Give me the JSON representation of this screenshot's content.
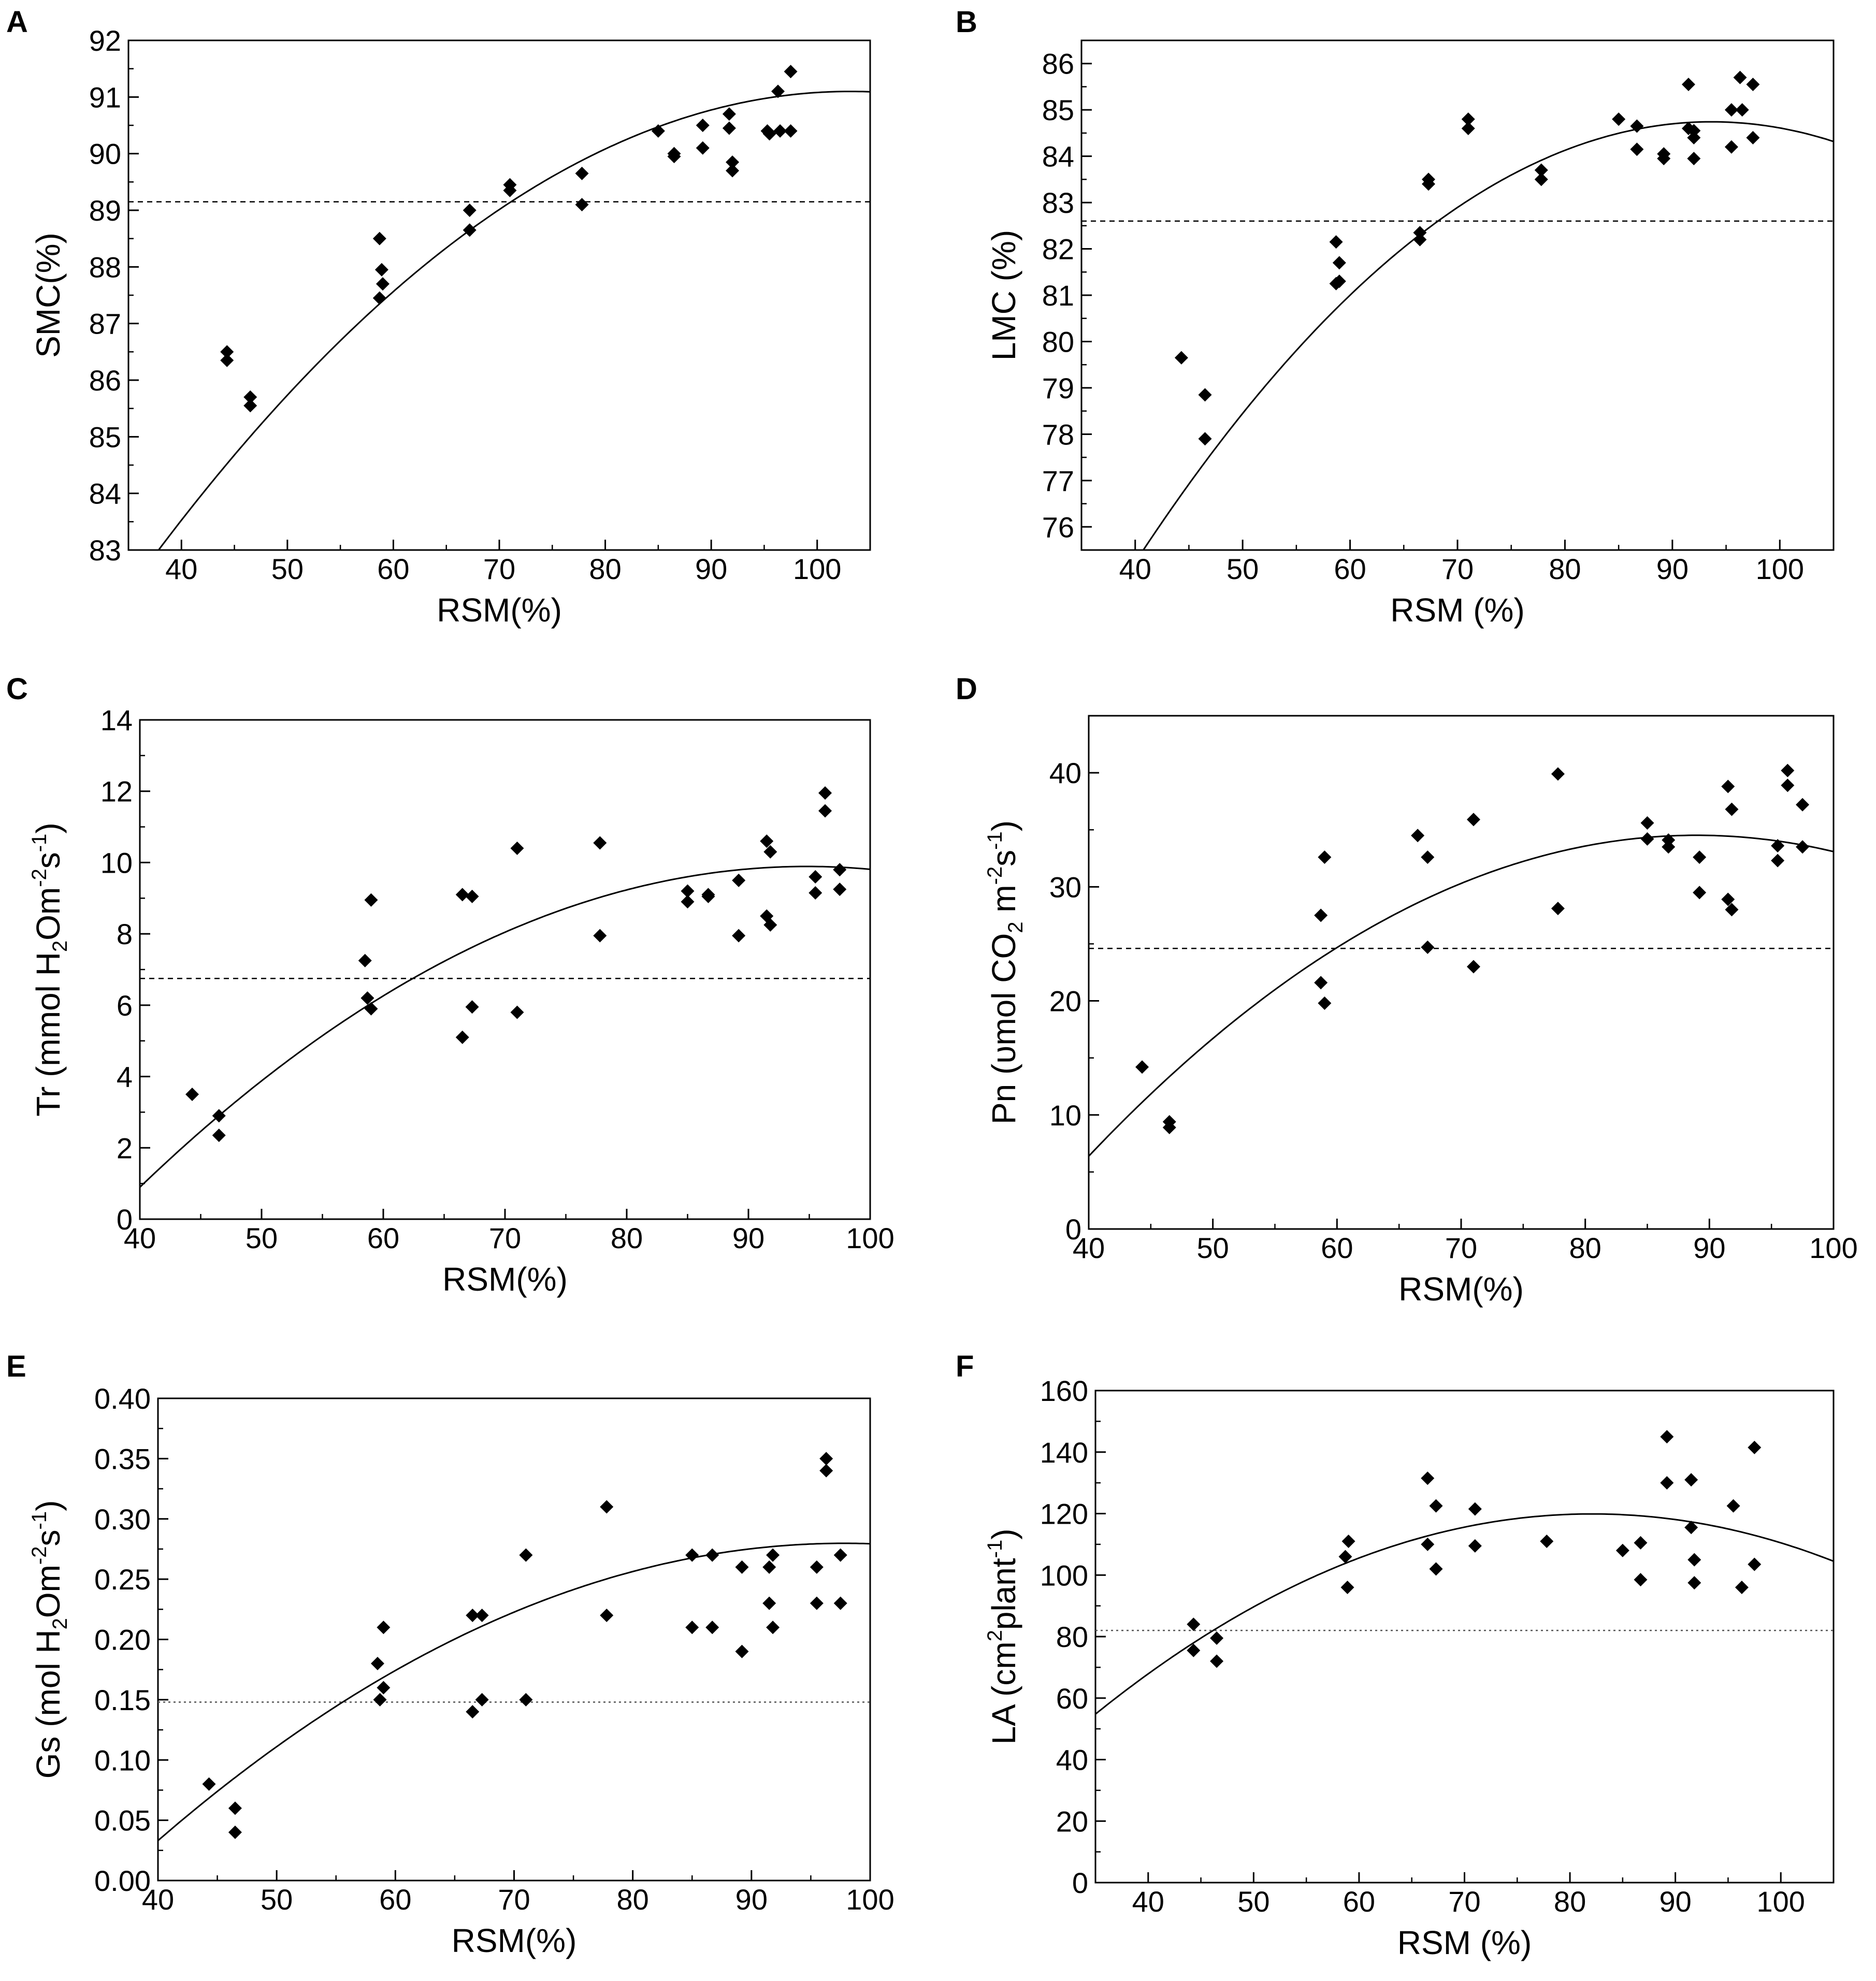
{
  "figure": {
    "panels": [
      {
        "id": "A",
        "chart_data": {
          "type": "scatter",
          "title": "",
          "xlabel": "RSM(%)",
          "ylabel": "SMC(%)",
          "xlim": [
            35,
            105
          ],
          "ylim": [
            83,
            92
          ],
          "xticks": [
            40,
            50,
            60,
            70,
            80,
            90,
            100
          ],
          "yticks": [
            83,
            84,
            85,
            86,
            87,
            88,
            89,
            90,
            91,
            92
          ],
          "points": [
            [
              44.3,
              86.5
            ],
            [
              44.3,
              86.35
            ],
            [
              46.5,
              85.7
            ],
            [
              46.5,
              85.55
            ],
            [
              58.7,
              88.5
            ],
            [
              58.9,
              87.95
            ],
            [
              59.0,
              87.7
            ],
            [
              58.7,
              87.45
            ],
            [
              67.2,
              89.0
            ],
            [
              67.2,
              88.65
            ],
            [
              71.0,
              89.45
            ],
            [
              71.0,
              89.35
            ],
            [
              77.8,
              89.65
            ],
            [
              77.8,
              89.1
            ],
            [
              85.0,
              90.4
            ],
            [
              86.5,
              90.0
            ],
            [
              86.5,
              89.95
            ],
            [
              89.2,
              90.5
            ],
            [
              89.2,
              90.1
            ],
            [
              91.7,
              90.7
            ],
            [
              91.7,
              90.45
            ],
            [
              92.0,
              89.85
            ],
            [
              92.0,
              89.7
            ],
            [
              95.3,
              90.4
            ],
            [
              95.5,
              90.35
            ],
            [
              96.3,
              91.1
            ],
            [
              96.5,
              90.4
            ],
            [
              97.5,
              91.45
            ],
            [
              97.5,
              90.4
            ]
          ],
          "fit_curve": {
            "style": "solid",
            "coefficients": [
              70.89,
              0.3919,
              -0.0019
            ]
          },
          "reference_line": {
            "y": 89.15,
            "style": "dashed"
          }
        }
      },
      {
        "id": "B",
        "chart_data": {
          "type": "scatter",
          "title": "",
          "xlabel": "RSM (%)",
          "ylabel": "LMC (%)",
          "xlim": [
            35,
            105
          ],
          "ylim": [
            75.5,
            86.5
          ],
          "xticks": [
            40,
            50,
            60,
            70,
            80,
            90,
            100
          ],
          "yticks": [
            76,
            77,
            78,
            79,
            80,
            81,
            82,
            83,
            84,
            85,
            86
          ],
          "points": [
            [
              44.3,
              79.65
            ],
            [
              46.5,
              78.85
            ],
            [
              46.5,
              77.9
            ],
            [
              58.7,
              82.15
            ],
            [
              59.0,
              81.7
            ],
            [
              59.0,
              81.3
            ],
            [
              58.7,
              81.25
            ],
            [
              66.5,
              82.35
            ],
            [
              66.5,
              82.2
            ],
            [
              67.3,
              83.5
            ],
            [
              67.3,
              83.4
            ],
            [
              71.0,
              84.8
            ],
            [
              71.0,
              84.6
            ],
            [
              77.8,
              83.7
            ],
            [
              77.8,
              83.5
            ],
            [
              85.0,
              84.8
            ],
            [
              86.7,
              84.65
            ],
            [
              86.7,
              84.15
            ],
            [
              89.2,
              84.05
            ],
            [
              89.2,
              83.95
            ],
            [
              91.5,
              85.55
            ],
            [
              91.5,
              84.6
            ],
            [
              92.0,
              84.55
            ],
            [
              92.0,
              84.4
            ],
            [
              92.0,
              83.95
            ],
            [
              95.5,
              85.0
            ],
            [
              95.5,
              84.2
            ],
            [
              96.3,
              85.7
            ],
            [
              96.5,
              85.0
            ],
            [
              97.5,
              85.55
            ],
            [
              97.5,
              84.4
            ]
          ],
          "fit_curve": {
            "style": "solid",
            "coefficients": [
              55.77,
              0.6187,
              -0.003303
            ]
          },
          "reference_line": {
            "y": 82.6,
            "style": "dashed"
          }
        }
      },
      {
        "id": "C",
        "chart_data": {
          "type": "scatter",
          "title": "",
          "xlabel": "RSM(%)",
          "ylabel": {
            "parts": [
              "Tr (mmol H",
              "2",
              "Om",
              "-2",
              "s",
              "-1",
              ")"
            ],
            "scripts": [
              "",
              "sub",
              "",
              "sup",
              "",
              "sup",
              ""
            ]
          },
          "xlim": [
            40,
            100
          ],
          "ylim": [
            0,
            14
          ],
          "xticks": [
            40,
            50,
            60,
            70,
            80,
            90,
            100
          ],
          "yticks": [
            0,
            2,
            4,
            6,
            8,
            10,
            12,
            14
          ],
          "points": [
            [
              44.3,
              3.5
            ],
            [
              46.5,
              2.9
            ],
            [
              46.5,
              2.35
            ],
            [
              58.5,
              7.25
            ],
            [
              58.7,
              6.2
            ],
            [
              59.0,
              8.95
            ],
            [
              59.0,
              5.9
            ],
            [
              66.5,
              9.1
            ],
            [
              66.5,
              5.1
            ],
            [
              67.3,
              9.05
            ],
            [
              67.3,
              5.95
            ],
            [
              71.0,
              10.4
            ],
            [
              71.0,
              5.8
            ],
            [
              77.8,
              10.55
            ],
            [
              77.8,
              7.95
            ],
            [
              85.0,
              9.2
            ],
            [
              85.0,
              8.9
            ],
            [
              86.7,
              9.1
            ],
            [
              86.7,
              9.05
            ],
            [
              89.2,
              9.5
            ],
            [
              89.2,
              7.95
            ],
            [
              91.5,
              10.6
            ],
            [
              91.5,
              8.5
            ],
            [
              91.8,
              10.3
            ],
            [
              91.8,
              8.25
            ],
            [
              95.5,
              9.6
            ],
            [
              95.5,
              9.15
            ],
            [
              96.3,
              11.95
            ],
            [
              96.3,
              11.45
            ],
            [
              97.5,
              9.8
            ],
            [
              97.5,
              9.25
            ]
          ],
          "fit_curve": {
            "style": "solid",
            "coefficients": [
              -17.02,
              0.5676,
              -0.002993
            ]
          },
          "reference_line": {
            "y": 6.75,
            "style": "dashed"
          }
        }
      },
      {
        "id": "D",
        "chart_data": {
          "type": "scatter",
          "title": "",
          "xlabel": "RSM(%)",
          "ylabel": {
            "parts": [
              "Pn  (υmol CO",
              "2",
              "  m",
              "-2",
              "s",
              "-1",
              ")"
            ],
            "scripts": [
              "",
              "sub",
              "",
              "sup",
              "",
              "sup",
              ""
            ]
          },
          "xlim": [
            40,
            100
          ],
          "ylim": [
            0,
            45
          ],
          "xticks": [
            40,
            50,
            60,
            70,
            80,
            90,
            100
          ],
          "yticks": [
            0,
            10,
            20,
            30,
            40
          ],
          "points": [
            [
              44.3,
              14.2
            ],
            [
              46.5,
              9.4
            ],
            [
              46.5,
              8.9
            ],
            [
              58.7,
              27.5
            ],
            [
              58.7,
              21.6
            ],
            [
              59.0,
              32.6
            ],
            [
              59.0,
              19.8
            ],
            [
              66.5,
              34.5
            ],
            [
              67.3,
              32.6
            ],
            [
              67.3,
              24.7
            ],
            [
              71.0,
              35.9
            ],
            [
              71.0,
              23.0
            ],
            [
              77.8,
              39.9
            ],
            [
              77.8,
              28.1
            ],
            [
              85.0,
              35.6
            ],
            [
              85.0,
              34.2
            ],
            [
              86.7,
              34.1
            ],
            [
              86.7,
              33.5
            ],
            [
              89.2,
              32.6
            ],
            [
              89.2,
              29.5
            ],
            [
              91.5,
              38.8
            ],
            [
              91.5,
              28.9
            ],
            [
              91.8,
              36.8
            ],
            [
              91.8,
              28.0
            ],
            [
              95.5,
              33.6
            ],
            [
              95.5,
              32.3
            ],
            [
              96.3,
              40.2
            ],
            [
              96.3,
              38.9
            ],
            [
              97.5,
              37.2
            ],
            [
              97.5,
              33.5
            ]
          ],
          "fit_curve": {
            "style": "solid",
            "coefficients": [
              -58.36,
              2.088,
              -0.011735
            ]
          },
          "reference_line": {
            "y": 24.6,
            "style": "dashed"
          }
        }
      },
      {
        "id": "E",
        "chart_data": {
          "type": "scatter",
          "title": "",
          "xlabel": "RSM(%)",
          "ylabel": {
            "parts": [
              "Gs (mol H",
              "2",
              "Om",
              "-2",
              "s",
              "-1",
              ")"
            ],
            "scripts": [
              "",
              "sub",
              "",
              "sup",
              "",
              "sup",
              ""
            ]
          },
          "xlim": [
            40,
            100
          ],
          "ylim": [
            0,
            0.4
          ],
          "xticks": [
            40,
            50,
            60,
            70,
            80,
            90,
            100
          ],
          "yticks": [
            "0.00",
            "0.05",
            "0.10",
            "0.15",
            "0.20",
            "0.25",
            "0.30",
            "0.35",
            "0.40"
          ],
          "points": [
            [
              44.3,
              0.08
            ],
            [
              46.5,
              0.06
            ],
            [
              46.5,
              0.04
            ],
            [
              58.5,
              0.18
            ],
            [
              58.7,
              0.15
            ],
            [
              59.0,
              0.21
            ],
            [
              59.0,
              0.16
            ],
            [
              66.5,
              0.22
            ],
            [
              66.5,
              0.14
            ],
            [
              67.3,
              0.22
            ],
            [
              67.3,
              0.15
            ],
            [
              71.0,
              0.27
            ],
            [
              71.0,
              0.15
            ],
            [
              77.8,
              0.31
            ],
            [
              77.8,
              0.22
            ],
            [
              85.0,
              0.27
            ],
            [
              85.0,
              0.21
            ],
            [
              86.7,
              0.27
            ],
            [
              86.7,
              0.21
            ],
            [
              89.2,
              0.26
            ],
            [
              89.2,
              0.19
            ],
            [
              91.5,
              0.26
            ],
            [
              91.5,
              0.23
            ],
            [
              91.8,
              0.27
            ],
            [
              91.8,
              0.21
            ],
            [
              95.5,
              0.26
            ],
            [
              95.5,
              0.23
            ],
            [
              96.3,
              0.35
            ],
            [
              96.3,
              0.34
            ],
            [
              97.5,
              0.27
            ],
            [
              97.5,
              0.23
            ]
          ],
          "fit_curve": {
            "style": "solid",
            "coefficients": [
              -0.4262,
              0.014434,
              -7.378e-05
            ]
          },
          "reference_line": {
            "y": 0.148,
            "style": "dotted"
          }
        }
      },
      {
        "id": "F",
        "chart_data": {
          "type": "scatter",
          "title": "",
          "xlabel": "RSM (%)",
          "ylabel": {
            "parts": [
              "LA (cm",
              "2",
              "plant",
              "-1",
              ")"
            ],
            "scripts": [
              "",
              "sup",
              "",
              "sup",
              ""
            ]
          },
          "xlim": [
            35,
            105
          ],
          "ylim": [
            0,
            160
          ],
          "xticks": [
            40,
            50,
            60,
            70,
            80,
            90,
            100
          ],
          "yticks": [
            0,
            20,
            40,
            60,
            80,
            100,
            120,
            140,
            160
          ],
          "points": [
            [
              44.3,
              84.0
            ],
            [
              44.3,
              75.5
            ],
            [
              46.5,
              79.5
            ],
            [
              46.5,
              72.0
            ],
            [
              58.7,
              106.0
            ],
            [
              58.9,
              96.0
            ],
            [
              59.0,
              111.0
            ],
            [
              66.5,
              131.5
            ],
            [
              66.5,
              110.0
            ],
            [
              67.3,
              122.5
            ],
            [
              67.3,
              102.0
            ],
            [
              71.0,
              121.5
            ],
            [
              71.0,
              109.5
            ],
            [
              77.8,
              111.0
            ],
            [
              85.0,
              108.0
            ],
            [
              86.7,
              110.5
            ],
            [
              86.7,
              98.5
            ],
            [
              89.2,
              145.0
            ],
            [
              89.2,
              130.0
            ],
            [
              91.5,
              131.0
            ],
            [
              91.5,
              115.5
            ],
            [
              91.8,
              105.0
            ],
            [
              91.8,
              97.5
            ],
            [
              95.5,
              122.5
            ],
            [
              96.3,
              96.0
            ],
            [
              97.5,
              141.5
            ],
            [
              97.5,
              103.5
            ]
          ],
          "fit_curve": {
            "style": "solid",
            "coefficients": [
              -77.89,
              4.8179,
              -0.029341
            ]
          },
          "reference_line": {
            "y": 82.0,
            "style": "dotted"
          }
        }
      }
    ]
  }
}
